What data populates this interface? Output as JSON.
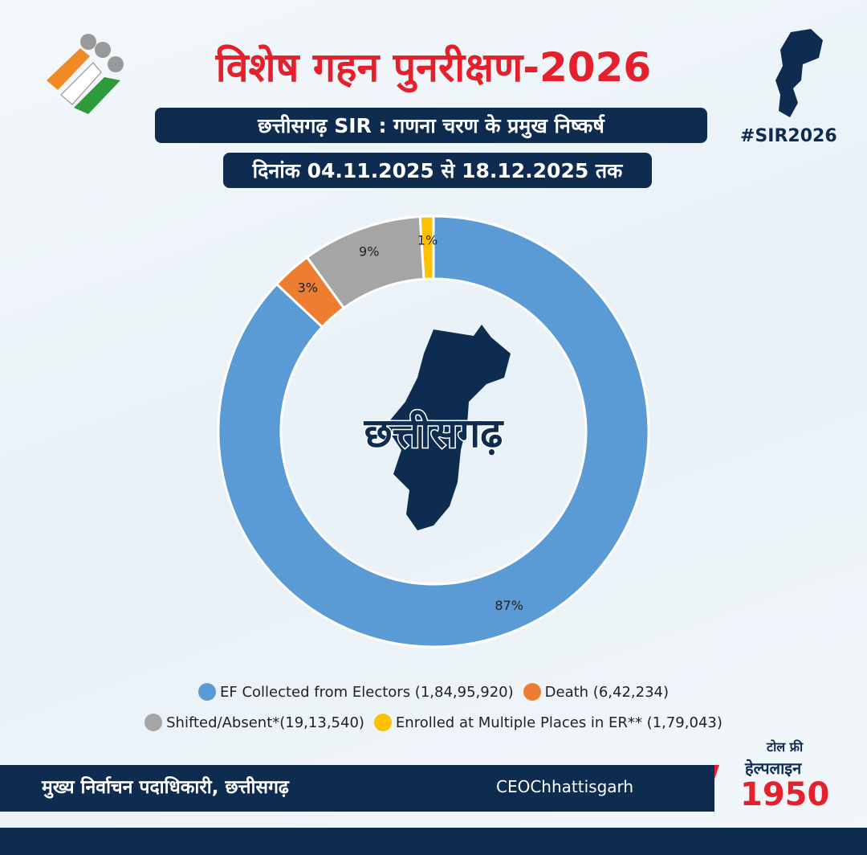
{
  "header": {
    "title": "विशेष गहन पुनरीक्षण-2026",
    "subtitle": "छत्तीसगढ़ SIR : गणना चरण के प्रमुख निष्कर्ष",
    "dates": "दिनांक 04.11.2025 से 18.12.2025 तक",
    "hashtag": "#SIR2026"
  },
  "chart_data": {
    "type": "donut",
    "center_label": "छत्तीसगढ़",
    "series": [
      {
        "name": "EF Collected from Electors (1,84,95,920)",
        "color": "#5b9bd5",
        "values": [
          87
        ],
        "value_labels": [
          "87%"
        ]
      },
      {
        "name": "Death (6,42,234)",
        "color": "#ed7d31",
        "values": [
          3
        ],
        "value_labels": [
          "3%"
        ]
      },
      {
        "name": "Shifted/Absent*(19,13,540)",
        "color": "#a5a5a5",
        "values": [
          9
        ],
        "value_labels": [
          "9%"
        ]
      },
      {
        "name": "Enrolled at Multiple Places in ER** (1,79,043)",
        "color": "#ffc000",
        "values": [
          1
        ],
        "value_labels": [
          "1%"
        ]
      }
    ]
  },
  "footer": {
    "office": "मुख्य निर्वाचन पदाधिकारी, छत्तीसगढ़",
    "handle": "CEOChhattisgarh",
    "toll_free": "टोल फ्री",
    "helpline": "हेल्पलाइन",
    "number": "1950"
  }
}
